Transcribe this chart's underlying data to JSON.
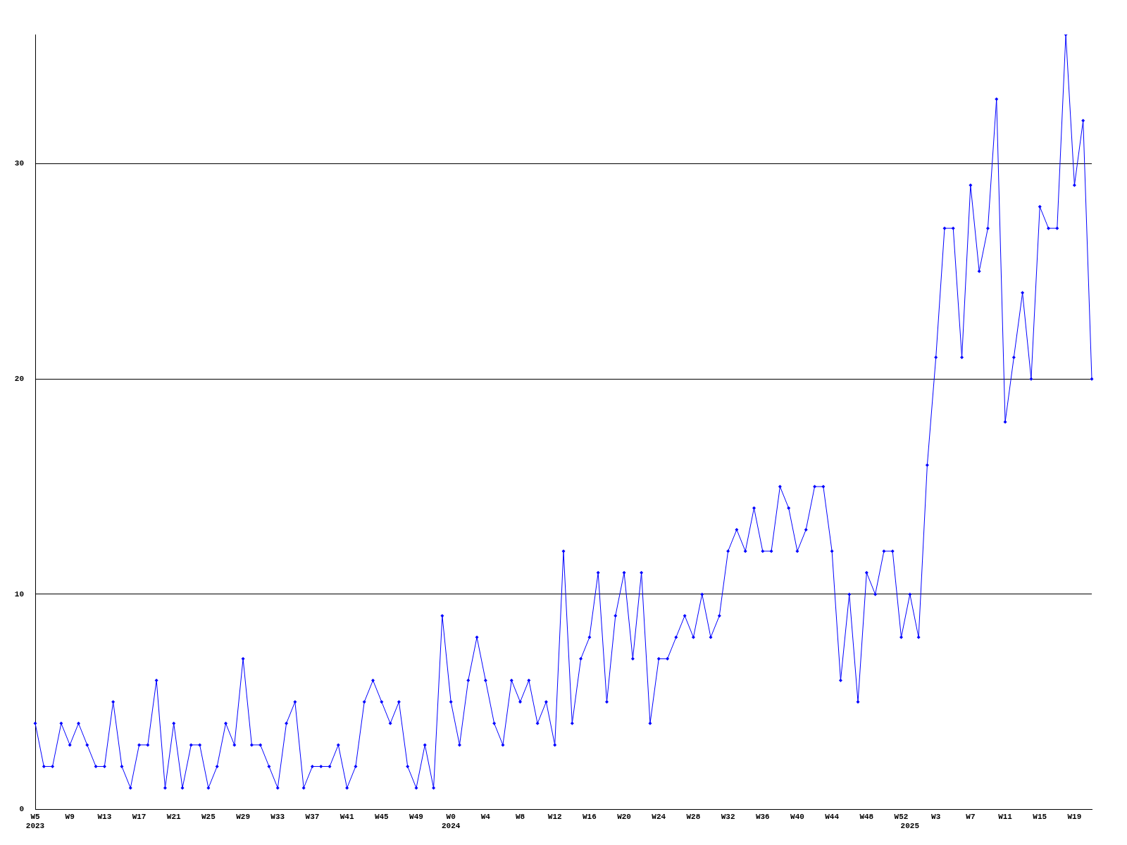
{
  "chart_data": {
    "type": "line",
    "categories": [
      "W5\n2023",
      null,
      null,
      null,
      "W9",
      null,
      null,
      null,
      "W13",
      null,
      null,
      null,
      "W17",
      null,
      null,
      null,
      "W21",
      null,
      null,
      null,
      "W25",
      null,
      null,
      null,
      "W29",
      null,
      null,
      null,
      "W33",
      null,
      null,
      null,
      "W37",
      null,
      null,
      null,
      "W41",
      null,
      null,
      null,
      "W45",
      null,
      null,
      null,
      "W49",
      null,
      null,
      null,
      "W0\n2024",
      null,
      null,
      null,
      "W4",
      null,
      null,
      null,
      "W8",
      null,
      null,
      null,
      "W12",
      null,
      null,
      null,
      "W16",
      null,
      null,
      null,
      "W20",
      null,
      null,
      null,
      "W24",
      null,
      null,
      null,
      "W28",
      null,
      null,
      null,
      "W32",
      null,
      null,
      null,
      "W36",
      null,
      null,
      null,
      "W40",
      null,
      null,
      null,
      "W44",
      null,
      null,
      null,
      "W48",
      null,
      null,
      null,
      "W52",
      "\n2025",
      null,
      null,
      "W3",
      null,
      null,
      null,
      "W7",
      null,
      null,
      null,
      "W11",
      null,
      null,
      null,
      "W15",
      null,
      null,
      null,
      "W19",
      null,
      null
    ],
    "series": [
      {
        "color": "#0000ff",
        "values": [
          4,
          2,
          2,
          4,
          3,
          4,
          3,
          2,
          2,
          5,
          2,
          1,
          3,
          3,
          6,
          1,
          4,
          1,
          3,
          3,
          1,
          2,
          4,
          3,
          7,
          3,
          3,
          2,
          1,
          4,
          5,
          1,
          2,
          2,
          2,
          3,
          1,
          2,
          5,
          6,
          5,
          4,
          5,
          2,
          1,
          3,
          1,
          9,
          5,
          3,
          6,
          8,
          6,
          4,
          3,
          6,
          5,
          6,
          4,
          5,
          3,
          12,
          4,
          7,
          8,
          11,
          5,
          9,
          11,
          7,
          11,
          4,
          7,
          7,
          8,
          9,
          8,
          10,
          8,
          9,
          12,
          13,
          12,
          14,
          12,
          12,
          15,
          14,
          12,
          13,
          15,
          15,
          12,
          6,
          10,
          5,
          11,
          10,
          12,
          12,
          8,
          10,
          8,
          16,
          21,
          27,
          27,
          21,
          29,
          25,
          27,
          33,
          18,
          21,
          24,
          20,
          28,
          27,
          27,
          36,
          29,
          32,
          20
        ]
      }
    ],
    "ylim": [
      0,
      36
    ],
    "yticks": [
      0,
      10,
      20,
      30
    ],
    "grid": "y",
    "marker": "diamond",
    "line_style": "solid",
    "legend": false
  }
}
